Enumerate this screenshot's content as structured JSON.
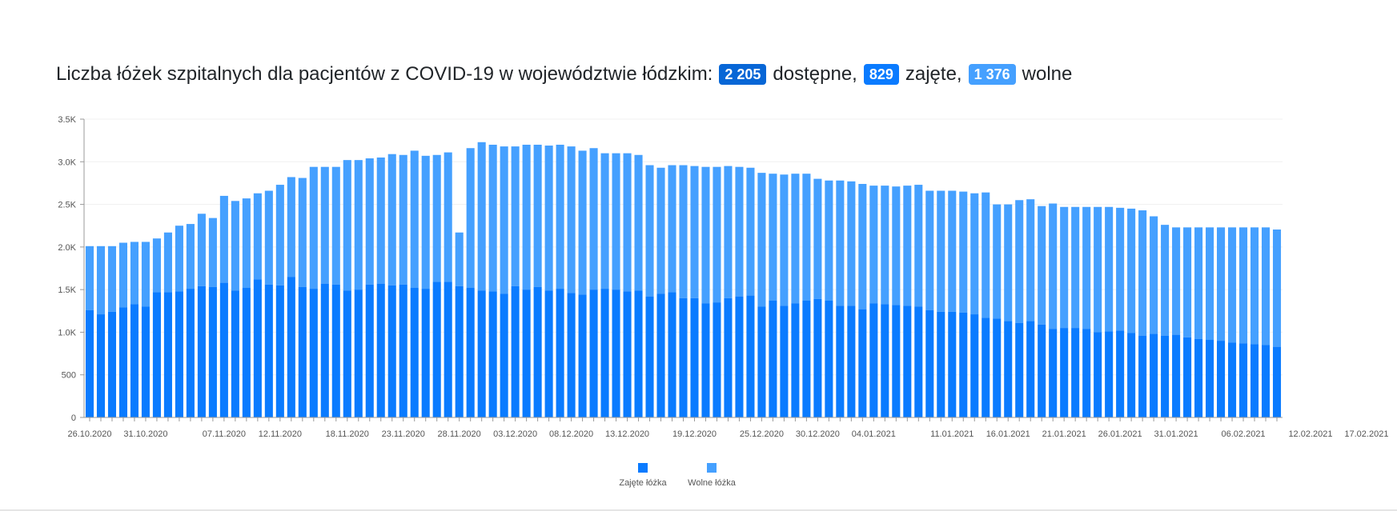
{
  "title": {
    "prefix": "Liczba łóżek szpitalnych dla pacjentów z COVID-19 w województwie łódzkim:",
    "available_value": "2 205",
    "available_label": "dostępne,",
    "occupied_value": "829",
    "occupied_label": "zajęte,",
    "free_value": "1 376",
    "free_label": "wolne"
  },
  "colors": {
    "occupied": "#0a7bff",
    "free": "#45a0ff",
    "badge_available": "#0766d6",
    "badge_occupied": "#0a7bff",
    "badge_free": "#45a0ff",
    "axis": "#555555",
    "grid": "#f0f0f0"
  },
  "chart_data": {
    "type": "bar",
    "stacked": true,
    "x_start_date": "26.10.2020",
    "x_tick_labels": [
      "26.10.2020",
      "31.10.2020",
      "07.11.2020",
      "12.11.2020",
      "18.11.2020",
      "23.11.2020",
      "28.11.2020",
      "03.12.2020",
      "08.12.2020",
      "13.12.2020",
      "19.12.2020",
      "25.12.2020",
      "30.12.2020",
      "04.01.2021",
      "11.01.2021",
      "16.01.2021",
      "21.01.2021",
      "26.01.2021",
      "31.01.2021",
      "06.02.2021",
      "12.02.2021",
      "17.02.2021"
    ],
    "y_tick_labels": [
      "0",
      "500",
      "1.0K",
      "1.5K",
      "2.0K",
      "2.5K",
      "3.0K",
      "3.5K"
    ],
    "ylim": [
      0,
      3500
    ],
    "grid": true,
    "legend_position": "bottom",
    "series": [
      {
        "name": "Zajęte łóżka",
        "values": [
          1260,
          1210,
          1240,
          1290,
          1330,
          1300,
          1470,
          1470,
          1480,
          1510,
          1540,
          1530,
          1580,
          1490,
          1520,
          1620,
          1560,
          1550,
          1650,
          1530,
          1510,
          1570,
          1560,
          1490,
          1500,
          1560,
          1570,
          1550,
          1560,
          1520,
          1510,
          1590,
          1590,
          1540,
          1520,
          1490,
          1480,
          1450,
          1540,
          1500,
          1530,
          1490,
          1510,
          1460,
          1440,
          1500,
          1510,
          1500,
          1480,
          1490,
          1420,
          1450,
          1470,
          1400,
          1400,
          1340,
          1350,
          1400,
          1420,
          1430,
          1300,
          1370,
          1310,
          1340,
          1370,
          1390,
          1370,
          1310,
          1310,
          1270,
          1340,
          1330,
          1320,
          1310,
          1300,
          1260,
          1240,
          1240,
          1230,
          1210,
          1170,
          1160,
          1130,
          1110,
          1130,
          1090,
          1040,
          1050,
          1050,
          1040,
          1000,
          1010,
          1020,
          990,
          960,
          980,
          960,
          970,
          940,
          920,
          910,
          900,
          880,
          870,
          860,
          850,
          829
        ],
        "color": "#0a7bff"
      },
      {
        "name": "Wolne łóżka",
        "values": [
          750,
          800,
          770,
          760,
          730,
          760,
          630,
          700,
          770,
          760,
          850,
          810,
          1020,
          1050,
          1050,
          1010,
          1100,
          1180,
          1170,
          1280,
          1430,
          1370,
          1380,
          1530,
          1520,
          1480,
          1480,
          1540,
          1520,
          1610,
          1560,
          1490,
          1520,
          630,
          1640,
          1740,
          1720,
          1730,
          1640,
          1700,
          1670,
          1700,
          1690,
          1720,
          1690,
          1660,
          1590,
          1600,
          1620,
          1590,
          1540,
          1480,
          1490,
          1560,
          1550,
          1600,
          1590,
          1550,
          1520,
          1500,
          1570,
          1490,
          1540,
          1520,
          1490,
          1410,
          1410,
          1470,
          1460,
          1470,
          1380,
          1390,
          1390,
          1410,
          1430,
          1400,
          1420,
          1420,
          1420,
          1420,
          1470,
          1340,
          1370,
          1440,
          1430,
          1390,
          1470,
          1420,
          1420,
          1430,
          1470,
          1460,
          1440,
          1460,
          1470,
          1380,
          1300,
          1260,
          1290,
          1310,
          1320,
          1330,
          1350,
          1360,
          1370,
          1380,
          1376
        ],
        "color": "#45a0ff"
      }
    ],
    "legend": [
      "Zajęte łóżka",
      "Wolne łóżka"
    ]
  }
}
